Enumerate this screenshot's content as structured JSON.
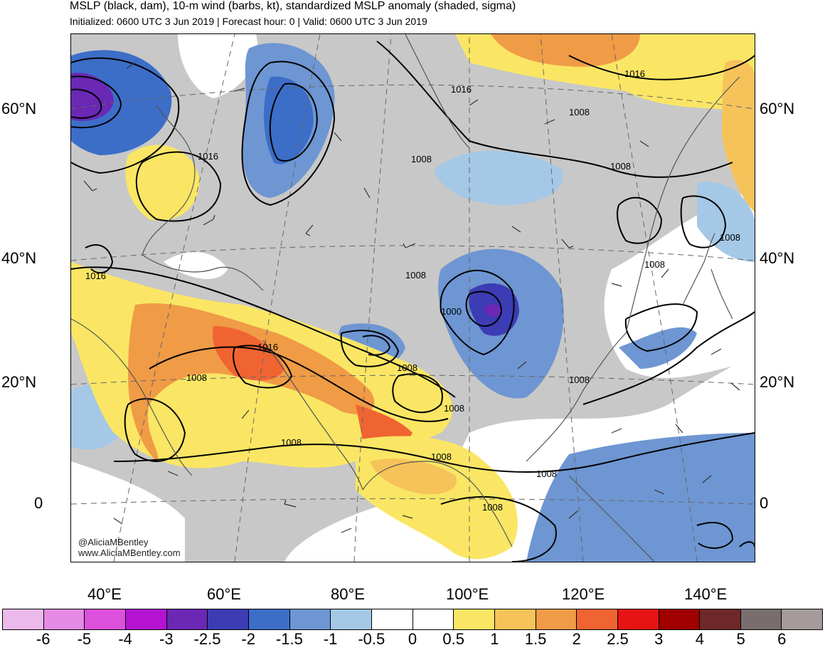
{
  "header": {
    "title": "MSLP (black, dam), 10-m wind (barbs, kt), standardized MSLP anomaly (shaded, sigma)",
    "subtitle": "Initialized: 0600 UTC 3 Jun 2019 | Forecast hour: 0 | Valid: 0600 UTC 3 Jun 2019"
  },
  "map": {
    "lat_labels": [
      "60°N",
      "40°N",
      "20°N",
      "0"
    ],
    "lon_labels": [
      "40°E",
      "60°E",
      "80°E",
      "100°E",
      "120°E",
      "140°E"
    ],
    "isobar_labels": [
      "1016",
      "1016",
      "1016",
      "1016",
      "1008",
      "1008",
      "1008",
      "1008",
      "1008",
      "1008",
      "1008",
      "1008",
      "1008",
      "1008",
      "1008",
      "1008",
      "1000"
    ],
    "credit_line1": "@AliciaMBentley",
    "credit_line2": "www.AliciaMBentley.com"
  },
  "colorbar": {
    "colors": [
      "#ebb9eb",
      "#e58be5",
      "#dc50dc",
      "#b414d2",
      "#6a28b4",
      "#3c3cb4",
      "#3c6ec8",
      "#6e96d2",
      "#a5c8e6",
      "#ffffff",
      "#ffffff",
      "#fae664",
      "#f5c35a",
      "#f09b46",
      "#f06432",
      "#e61414",
      "#a00000",
      "#6e2828",
      "#786e6e",
      "#a59b9b"
    ],
    "labels": [
      "-6",
      "-5",
      "-4",
      "-3",
      "-2.5",
      "-2",
      "-1.5",
      "-1",
      "-0.5",
      "0",
      "0.5",
      "1",
      "1.5",
      "2",
      "2.5",
      "3",
      "4",
      "5",
      "6"
    ]
  }
}
